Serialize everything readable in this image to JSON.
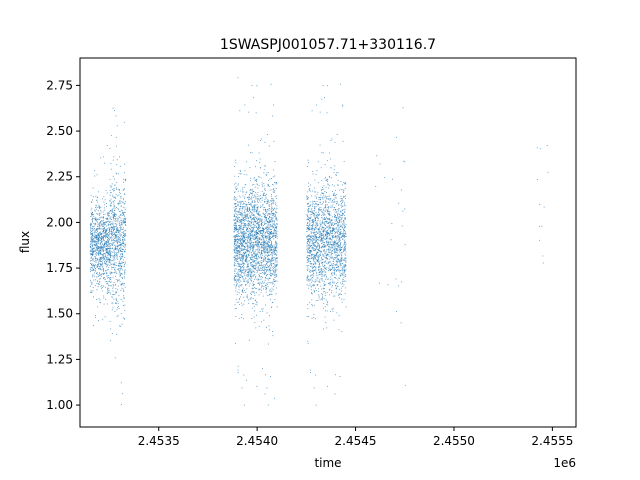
{
  "chart_data": {
    "type": "scatter",
    "title": "1SWASPJ001057.71+330116.7",
    "xlabel": "time",
    "ylabel": "flux",
    "x_offset_label": "1e6",
    "xlim": [
      2453100,
      2455620
    ],
    "ylim": [
      0.88,
      2.9
    ],
    "xticks": [
      2453500,
      2454000,
      2454500,
      2455000,
      2455500
    ],
    "xtick_labels": [
      "2.4535",
      "2.4540",
      "2.4545",
      "2.4550",
      "2.4555"
    ],
    "yticks": [
      1.0,
      1.25,
      1.5,
      1.75,
      2.0,
      2.25,
      2.5,
      2.75
    ],
    "ytick_labels": [
      "1.00",
      "1.25",
      "1.50",
      "1.75",
      "2.00",
      "2.25",
      "2.50",
      "2.75"
    ],
    "grid": false,
    "marker_color": "#1f77b4",
    "series": [
      {
        "clusters": [
          {
            "x_range": [
              2453150,
              2453250
            ],
            "center": 1.87,
            "spread": 0.12,
            "min": 1.4,
            "max": 2.45,
            "points": 900
          },
          {
            "x_range": [
              2453250,
              2453330
            ],
            "center": 1.9,
            "spread": 0.17,
            "min": 1.0,
            "max": 2.7,
            "points": 700
          },
          {
            "x_range": [
              2453880,
              2454100
            ],
            "center": 1.9,
            "spread": 0.16,
            "min": 0.97,
            "max": 2.8,
            "points": 2400
          },
          {
            "x_range": [
              2454250,
              2454450
            ],
            "center": 1.9,
            "spread": 0.16,
            "min": 0.97,
            "max": 2.8,
            "points": 1800
          },
          {
            "x_range": [
              2454600,
              2454760
            ],
            "center": 1.95,
            "spread": 0.35,
            "min": 1.05,
            "max": 2.63,
            "points": 25
          },
          {
            "x_range": [
              2455420,
              2455480
            ],
            "center": 2.1,
            "spread": 0.3,
            "min": 1.78,
            "max": 2.55,
            "points": 12
          }
        ]
      }
    ]
  }
}
